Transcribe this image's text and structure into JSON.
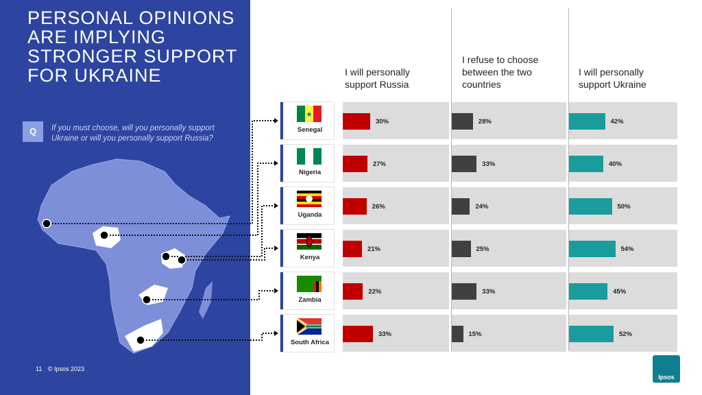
{
  "title_lines": [
    "PERSONAL OPINIONS",
    "ARE IMPLYING",
    "STRONGER SUPPORT",
    "FOR UKRAINE"
  ],
  "question": {
    "badge": "Q",
    "text": "If you must choose, will you personally support Ukraine or will you personally support Russia?"
  },
  "footer": {
    "page": "11",
    "copyright": "© Ipsos 2023"
  },
  "logo": "Ipsos",
  "colors": {
    "panel": "#2d45a0",
    "russia": "#c00000",
    "refuse": "#404040",
    "ukraine": "#1a9c9c",
    "bar_bg": "#dcdcdc"
  },
  "chart_data": {
    "type": "bar",
    "orientation": "horizontal",
    "categories": [
      "Senegal",
      "Nigeria",
      "Uganda",
      "Kenya",
      "Zambia",
      "South Africa"
    ],
    "series": [
      {
        "name": "I will personally support Russia",
        "values": [
          30,
          27,
          26,
          21,
          22,
          33
        ]
      },
      {
        "name": "I refuse to choose between the two countries",
        "values": [
          28,
          33,
          24,
          25,
          33,
          15
        ]
      },
      {
        "name": "I will personally support Ukraine",
        "values": [
          42,
          40,
          50,
          54,
          45,
          52
        ]
      }
    ],
    "value_suffix": "%",
    "headers": [
      [
        "I will personally",
        "support Russia"
      ],
      [
        "I refuse to choose",
        "between the two",
        "countries"
      ],
      [
        "I will personally",
        "support Ukraine"
      ]
    ]
  }
}
